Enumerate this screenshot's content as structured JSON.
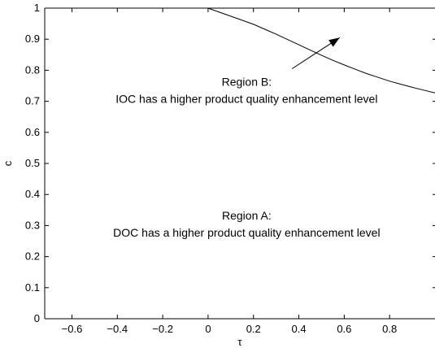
{
  "chart_data": {
    "type": "line",
    "title": "",
    "xlabel": "τ",
    "ylabel": "c",
    "xlim": [
      -0.72,
      1.0
    ],
    "ylim": [
      0,
      1
    ],
    "xticks": [
      -0.6,
      -0.4,
      -0.2,
      0,
      0.2,
      0.4,
      0.6,
      0.8
    ],
    "xtick_labels": [
      "−0.6",
      "−0.4",
      "−0.2",
      "0",
      "0.2",
      "0.4",
      "0.6",
      "0.8"
    ],
    "yticks": [
      0,
      0.1,
      0.2,
      0.3,
      0.4,
      0.5,
      0.6,
      0.7,
      0.8,
      0.9,
      1
    ],
    "ytick_labels": [
      "0",
      "0.1",
      "0.2",
      "0.3",
      "0.4",
      "0.5",
      "0.6",
      "0.7",
      "0.8",
      "0.9",
      "1"
    ],
    "grid": false,
    "series": [
      {
        "x": [
          0,
          0.05,
          0.1,
          0.15,
          0.2,
          0.25,
          0.3,
          0.35,
          0.4,
          0.45,
          0.5,
          0.55,
          0.6,
          0.65,
          0.7,
          0.75,
          0.8,
          0.85,
          0.9,
          0.95,
          1.0
        ],
        "y": [
          1.0,
          0.987,
          0.974,
          0.961,
          0.948,
          0.932,
          0.916,
          0.899,
          0.882,
          0.865,
          0.848,
          0.832,
          0.817,
          0.803,
          0.789,
          0.777,
          0.765,
          0.755,
          0.745,
          0.736,
          0.727
        ],
        "color": "#000000"
      }
    ],
    "annotations": [
      {
        "lines": [
          "Region B:",
          "IOC has a higher product quality enhancement level"
        ],
        "x": 0.17,
        "y": 0.75
      },
      {
        "lines": [
          "Region A:",
          "DOC has a higher product quality enhancement level"
        ],
        "x": 0.17,
        "y": 0.32
      }
    ],
    "arrow": {
      "from": [
        0.37,
        0.805
      ],
      "to": [
        0.58,
        0.905
      ]
    }
  }
}
